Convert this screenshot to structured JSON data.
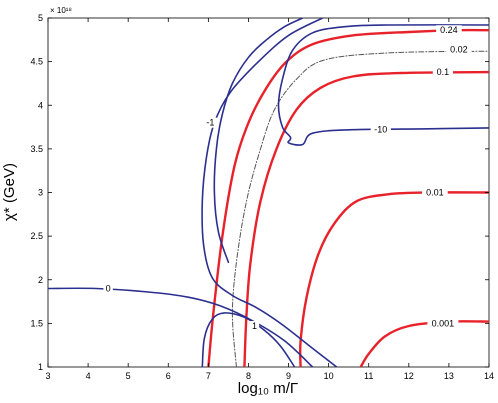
{
  "chart_data": {
    "type": "contour",
    "xlabel": "log₁₀ m/Γ",
    "ylabel": "χ* (GeV)",
    "y_exponent_label": "× 10¹⁸",
    "xlim": [
      3,
      14
    ],
    "ylim": [
      1,
      5
    ],
    "x_ticks": [
      "3",
      "4",
      "5",
      "6",
      "7",
      "8",
      "9",
      "10",
      "11",
      "12",
      "13",
      "14"
    ],
    "y_ticks": [
      "1",
      "1.5",
      "2",
      "2.5",
      "3",
      "3.5",
      "4",
      "4.5",
      "5"
    ],
    "grid": false,
    "colors": {
      "red": "#e8222a",
      "blue": "#2b2f8f",
      "dashdot": "#555555"
    },
    "series": [
      {
        "label": "0.24",
        "color": "red",
        "points": [
          [
            7.0,
            1.0
          ],
          [
            7.12,
            1.6
          ],
          [
            7.35,
            2.5
          ],
          [
            7.65,
            3.3
          ],
          [
            8.0,
            3.8
          ],
          [
            8.45,
            4.2
          ],
          [
            8.95,
            4.5
          ],
          [
            9.6,
            4.7
          ],
          [
            10.6,
            4.8
          ],
          [
            12.0,
            4.84
          ],
          [
            13.2,
            4.86
          ],
          [
            14.0,
            4.86
          ]
        ],
        "label_pos": [
          13.0,
          4.86
        ]
      },
      {
        "label": "0.1",
        "color": "red",
        "points": [
          [
            7.9,
            1.0
          ],
          [
            7.95,
            1.6
          ],
          [
            8.05,
            2.2
          ],
          [
            8.3,
            2.9
          ],
          [
            8.7,
            3.5
          ],
          [
            9.2,
            3.95
          ],
          [
            9.8,
            4.2
          ],
          [
            10.6,
            4.33
          ],
          [
            11.8,
            4.37
          ],
          [
            14.0,
            4.38
          ]
        ],
        "label_pos": [
          12.85,
          4.38
        ]
      },
      {
        "label": "0.01",
        "color": "red",
        "points": [
          [
            9.3,
            1.0
          ],
          [
            9.3,
            1.3
          ],
          [
            9.45,
            1.8
          ],
          [
            9.75,
            2.3
          ],
          [
            10.15,
            2.65
          ],
          [
            10.7,
            2.9
          ],
          [
            11.5,
            2.98
          ],
          [
            12.5,
            3.0
          ],
          [
            14.0,
            3.0
          ]
        ],
        "label_pos": [
          12.65,
          3.0
        ]
      },
      {
        "label": "0.001",
        "color": "red",
        "points": [
          [
            10.8,
            1.0
          ],
          [
            11.0,
            1.15
          ],
          [
            11.4,
            1.35
          ],
          [
            12.0,
            1.47
          ],
          [
            13.0,
            1.52
          ],
          [
            14.0,
            1.52
          ]
        ],
        "label_pos": [
          12.85,
          1.5
        ]
      },
      {
        "label": "0.02",
        "color": "dashdot",
        "style": "dashdot",
        "points": [
          [
            7.7,
            1.0
          ],
          [
            7.6,
            1.6
          ],
          [
            7.7,
            2.2
          ],
          [
            7.95,
            2.9
          ],
          [
            8.3,
            3.5
          ],
          [
            8.65,
            3.95
          ],
          [
            9.2,
            4.3
          ],
          [
            9.9,
            4.52
          ],
          [
            11.5,
            4.6
          ],
          [
            14.0,
            4.62
          ]
        ],
        "label_pos": [
          13.25,
          4.64
        ]
      },
      {
        "label": "-1",
        "color": "blue",
        "points": [
          [
            9.85,
            5.0
          ],
          [
            9.0,
            4.8
          ],
          [
            8.25,
            4.5
          ],
          [
            7.55,
            4.15
          ],
          [
            7.15,
            3.8
          ],
          [
            6.95,
            3.4
          ],
          [
            6.85,
            2.9
          ],
          [
            6.88,
            2.4
          ],
          [
            7.1,
            2.02
          ],
          [
            7.6,
            1.82
          ],
          [
            8.2,
            1.68
          ],
          [
            8.8,
            1.5
          ],
          [
            9.5,
            1.25
          ],
          [
            10.2,
            1.0
          ]
        ],
        "label_pos": [
          7.05,
          3.8
        ]
      },
      {
        "label": "-10",
        "color": "blue",
        "points": [
          [
            14.0,
            4.92
          ],
          [
            11.5,
            4.92
          ],
          [
            10.4,
            4.9
          ],
          [
            9.6,
            4.83
          ],
          [
            9.1,
            4.63
          ],
          [
            8.85,
            4.3
          ],
          [
            8.75,
            4.0
          ],
          [
            8.85,
            3.75
          ],
          [
            9.05,
            3.63
          ],
          [
            9.0,
            3.57
          ],
          [
            9.35,
            3.55
          ],
          [
            9.6,
            3.68
          ],
          [
            10.6,
            3.72
          ],
          [
            12.5,
            3.73
          ],
          [
            14.0,
            3.74
          ]
        ],
        "label_pos": [
          11.3,
          3.72
        ]
      },
      {
        "label": "0",
        "color": "blue",
        "points": [
          [
            3.0,
            1.9
          ],
          [
            4.2,
            1.9
          ],
          [
            5.5,
            1.86
          ],
          [
            6.5,
            1.8
          ],
          [
            7.3,
            1.7
          ],
          [
            8.1,
            1.53
          ],
          [
            8.9,
            1.3
          ],
          [
            9.6,
            1.0
          ]
        ],
        "label_pos": [
          4.5,
          1.9
        ]
      },
      {
        "label": "1",
        "color": "blue",
        "points": [
          [
            6.85,
            1.0
          ],
          [
            6.9,
            1.33
          ],
          [
            7.1,
            1.55
          ],
          [
            7.4,
            1.62
          ],
          [
            7.9,
            1.57
          ],
          [
            8.4,
            1.42
          ],
          [
            8.8,
            1.24
          ],
          [
            9.15,
            1.0
          ]
        ],
        "label_pos": [
          8.15,
          1.47
        ]
      },
      {
        "label": "",
        "color": "blue",
        "points": [
          [
            9.35,
            5.0
          ],
          [
            8.9,
            4.9
          ],
          [
            8.45,
            4.75
          ],
          [
            8.0,
            4.55
          ],
          [
            7.6,
            4.25
          ],
          [
            7.35,
            3.9
          ],
          [
            7.2,
            3.5
          ],
          [
            7.15,
            3.0
          ],
          [
            7.25,
            2.55
          ],
          [
            7.5,
            2.2
          ]
        ],
        "label_pos": null
      }
    ]
  }
}
